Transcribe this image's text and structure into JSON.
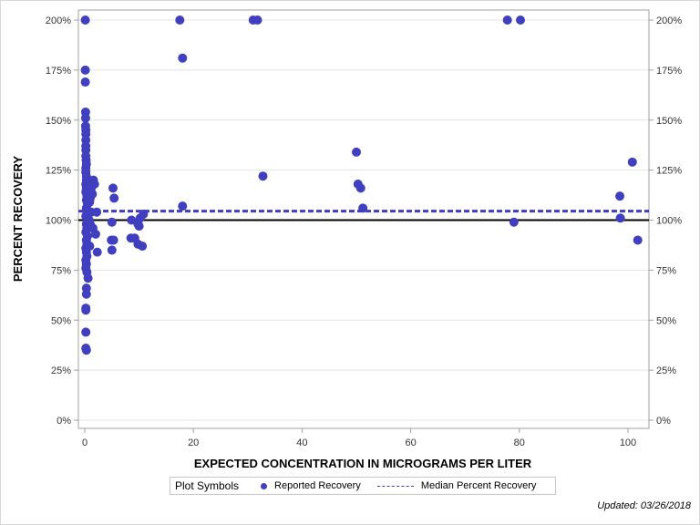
{
  "chart_data": {
    "type": "scatter",
    "title": "",
    "xlabel": "EXPECTED CONCENTRATION IN MICROGRAMS PER LITER",
    "ylabel": "PERCENT RECOVERY",
    "xlim": [
      -1,
      103
    ],
    "ylim": [
      0,
      200
    ],
    "x_ticks": [
      0,
      20,
      40,
      60,
      80,
      100
    ],
    "y_ticks": [
      0,
      25,
      50,
      75,
      100,
      125,
      150,
      175,
      200
    ],
    "y_tick_labels": [
      "0%",
      "25%",
      "50%",
      "75%",
      "100%",
      "125%",
      "150%",
      "175%",
      "200%"
    ],
    "grid": "horizontal",
    "reference_lines": [
      {
        "name": "100% line",
        "y": 100,
        "style": "solid",
        "color": "#000000"
      },
      {
        "name": "Median Percent Recovery",
        "y": 104.5,
        "style": "dashed",
        "color": "#3f3fbf"
      }
    ],
    "series": [
      {
        "name": "Reported Recovery",
        "color": "#3f3fbf",
        "points": [
          [
            0.1,
            200
          ],
          [
            0.1,
            175
          ],
          [
            0.1,
            169
          ],
          [
            0.15,
            154
          ],
          [
            0.15,
            151
          ],
          [
            0.15,
            147
          ],
          [
            0.2,
            145
          ],
          [
            0.2,
            143
          ],
          [
            0.2,
            140
          ],
          [
            0.2,
            137
          ],
          [
            0.2,
            135
          ],
          [
            0.2,
            132
          ],
          [
            0.25,
            130
          ],
          [
            0.3,
            128
          ],
          [
            0.2,
            126
          ],
          [
            0.2,
            124
          ],
          [
            0.3,
            122
          ],
          [
            0.3,
            120
          ],
          [
            0.2,
            118
          ],
          [
            0.3,
            116
          ],
          [
            0.2,
            114
          ],
          [
            0.4,
            112
          ],
          [
            0.3,
            110
          ],
          [
            0.5,
            108
          ],
          [
            0.3,
            106
          ],
          [
            0.4,
            104
          ],
          [
            0.2,
            102
          ],
          [
            0.5,
            100
          ],
          [
            0.3,
            98
          ],
          [
            0.4,
            96
          ],
          [
            0.2,
            94
          ],
          [
            0.5,
            92
          ],
          [
            0.3,
            90
          ],
          [
            0.4,
            88
          ],
          [
            0.2,
            86
          ],
          [
            0.3,
            84
          ],
          [
            0.4,
            82
          ],
          [
            0.2,
            80
          ],
          [
            0.3,
            78
          ],
          [
            0.2,
            76
          ],
          [
            0.4,
            74
          ],
          [
            0.6,
            71
          ],
          [
            0.3,
            66
          ],
          [
            0.3,
            63
          ],
          [
            0.2,
            56
          ],
          [
            0.2,
            55
          ],
          [
            0.2,
            44
          ],
          [
            0.2,
            36
          ],
          [
            0.3,
            35
          ],
          [
            1.6,
            120
          ],
          [
            1.8,
            118
          ],
          [
            1.2,
            116
          ],
          [
            1.4,
            113
          ],
          [
            1.0,
            111
          ],
          [
            0.9,
            109
          ],
          [
            1.2,
            104
          ],
          [
            2.2,
            104
          ],
          [
            0.8,
            100
          ],
          [
            1.0,
            98
          ],
          [
            2.0,
            93
          ],
          [
            1.5,
            96
          ],
          [
            0.9,
            87
          ],
          [
            2.3,
            84
          ],
          [
            5.2,
            116
          ],
          [
            5.4,
            111
          ],
          [
            5.0,
            99
          ],
          [
            4.9,
            90
          ],
          [
            5.3,
            90
          ],
          [
            5.0,
            85
          ],
          [
            8.6,
            100
          ],
          [
            8.5,
            91
          ],
          [
            9.2,
            91
          ],
          [
            9.8,
            98
          ],
          [
            10.0,
            97
          ],
          [
            10.2,
            101
          ],
          [
            10.8,
            103
          ],
          [
            9.8,
            88
          ],
          [
            10.6,
            87
          ],
          [
            17.5,
            200
          ],
          [
            18.0,
            181
          ],
          [
            18.0,
            107
          ],
          [
            31.0,
            200
          ],
          [
            31.8,
            200
          ],
          [
            32.8,
            122
          ],
          [
            50.0,
            134
          ],
          [
            50.3,
            118
          ],
          [
            50.8,
            116
          ],
          [
            51.2,
            106
          ],
          [
            77.8,
            200
          ],
          [
            80.2,
            200
          ],
          [
            79.0,
            99
          ],
          [
            98.5,
            112
          ],
          [
            98.6,
            101
          ],
          [
            100.8,
            129
          ],
          [
            101.8,
            90
          ]
        ]
      }
    ],
    "legend": {
      "title": "Plot Symbols",
      "entries": [
        "Reported Recovery",
        "Median Percent Recovery"
      ],
      "position": "bottom"
    },
    "annotation": "Updated: 03/26/2018"
  },
  "axes": {
    "x_title": "EXPECTED CONCENTRATION IN MICROGRAMS PER LITER",
    "y_title": "PERCENT RECOVERY"
  },
  "legend": {
    "title": "Plot Symbols",
    "item1": "Reported Recovery",
    "item2": "Median Percent Recovery"
  },
  "footer": {
    "updated": "Updated: 03/26/2018"
  }
}
